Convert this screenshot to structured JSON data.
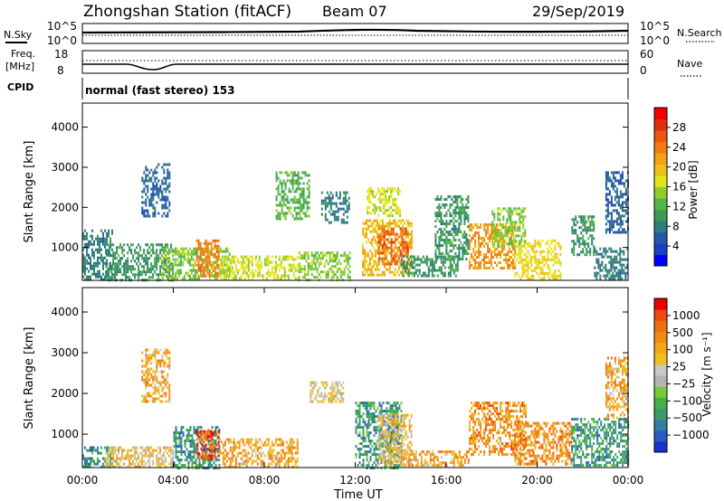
{
  "header": {
    "station": "Zhongshan Station (fitACF)",
    "beam": "Beam 07",
    "date": "29/Sep/2019",
    "cpid_label": "CPID",
    "cpid_text": "normal (fast stereo) 153"
  },
  "chart_data": [
    {
      "id": "nsky-nsearch",
      "type": "line",
      "left_label": "N.Sky",
      "left_ticks": [
        "10^5",
        "10^0"
      ],
      "right_label": "N.Search",
      "right_ticks": [
        "10^5",
        "10^0"
      ]
    },
    {
      "id": "freq-nave",
      "type": "line",
      "left_label_lines": [
        "Freq.",
        "[MHz]"
      ],
      "left_ticks": [
        "18",
        "8"
      ],
      "right_label": "Nave",
      "right_ticks": [
        "60",
        "0"
      ]
    },
    {
      "id": "power",
      "type": "heatmap",
      "ylabel": "Slant Range [km]",
      "yticks": [
        1000,
        2000,
        3000,
        4000
      ],
      "ylim": [
        180,
        4600
      ],
      "xlim_hours": [
        0,
        24
      ],
      "colorbar": {
        "label": "Power [dB]",
        "min": 0,
        "max": 32,
        "tick_labels": [
          "4",
          "8",
          "12",
          "16",
          "20",
          "24",
          "28"
        ],
        "colors": [
          "#0000ff",
          "#1a3fc4",
          "#2458a6",
          "#2e7d7a",
          "#3f9a55",
          "#52b84a",
          "#94cc2e",
          "#e4e41c",
          "#f0c018",
          "#f2a014",
          "#f07c10",
          "#e85810",
          "#e02e10",
          "#f50000"
        ]
      },
      "regions": [
        {
          "t": [
            0.0,
            1.3
          ],
          "r": [
            180,
            1450
          ],
          "v": 8
        },
        {
          "t": [
            1.0,
            4.0
          ],
          "r": [
            200,
            1100
          ],
          "v": 10
        },
        {
          "t": [
            3.5,
            6.5
          ],
          "r": [
            200,
            1000
          ],
          "v": 14
        },
        {
          "t": [
            5.0,
            6.0
          ],
          "r": [
            300,
            1200
          ],
          "v": 24
        },
        {
          "t": [
            6.0,
            9.5
          ],
          "r": [
            200,
            800
          ],
          "v": 16
        },
        {
          "t": [
            9.5,
            11.8
          ],
          "r": [
            200,
            900
          ],
          "v": 14
        },
        {
          "t": [
            10.5,
            11.7
          ],
          "r": [
            1650,
            2400
          ],
          "v": 8
        },
        {
          "t": [
            12.3,
            14.5
          ],
          "r": [
            300,
            1700
          ],
          "v": 20
        },
        {
          "t": [
            13.0,
            14.3
          ],
          "r": [
            600,
            1500
          ],
          "v": 26
        },
        {
          "t": [
            14.0,
            16.5
          ],
          "r": [
            300,
            800
          ],
          "v": 10
        },
        {
          "t": [
            17.0,
            19.0
          ],
          "r": [
            500,
            1600
          ],
          "v": 22
        },
        {
          "t": [
            19.0,
            21.0
          ],
          "r": [
            250,
            1200
          ],
          "v": 18
        },
        {
          "t": [
            21.5,
            22.5
          ],
          "r": [
            800,
            1800
          ],
          "v": 10
        },
        {
          "t": [
            22.5,
            24.0
          ],
          "r": [
            200,
            1000
          ],
          "v": 8
        },
        {
          "t": [
            23.0,
            24.0
          ],
          "r": [
            1400,
            2900
          ],
          "v": 6
        },
        {
          "t": [
            2.6,
            3.8
          ],
          "r": [
            1800,
            3100
          ],
          "v": 6
        },
        {
          "t": [
            8.5,
            10.0
          ],
          "r": [
            1700,
            2900
          ],
          "v": 12
        },
        {
          "t": [
            12.5,
            14.0
          ],
          "r": [
            1800,
            2500
          ],
          "v": 16
        },
        {
          "t": [
            15.5,
            17.0
          ],
          "r": [
            700,
            2300
          ],
          "v": 10
        },
        {
          "t": [
            18.0,
            19.5
          ],
          "r": [
            1000,
            2000
          ],
          "v": 14
        }
      ]
    },
    {
      "id": "velocity",
      "type": "heatmap",
      "ylabel": "Slant Range [km]",
      "yticks": [
        1000,
        2000,
        3000,
        4000
      ],
      "ylim": [
        180,
        4600
      ],
      "xlim_hours": [
        0,
        24
      ],
      "xtick_labels": [
        "00:00",
        "04:00",
        "08:00",
        "12:00",
        "16:00",
        "20:00",
        "00:00"
      ],
      "xlabel": "Time UT",
      "colorbar": {
        "label": "Velocity [m s⁻¹]",
        "tick_labels": [
          "1000",
          "500",
          "100",
          "25",
          "−25",
          "−100",
          "−500",
          "−1000"
        ],
        "colors": [
          "#1c2fd0",
          "#2a5ac0",
          "#2e7fa0",
          "#3a9a6a",
          "#44b04a",
          "#78c83a",
          "#b4b4b4",
          "#c8c8c8",
          "#f0c020",
          "#f0a818",
          "#f08c14",
          "#f07010",
          "#ec4810",
          "#e80000"
        ]
      },
      "regions": [
        {
          "t": [
            0.0,
            1.3
          ],
          "r": [
            180,
            700
          ],
          "v": 3
        },
        {
          "t": [
            1.0,
            4.0
          ],
          "r": [
            200,
            700
          ],
          "v": 8
        },
        {
          "t": [
            4.0,
            6.0
          ],
          "r": [
            200,
            1200
          ],
          "v": 3
        },
        {
          "t": [
            5.0,
            6.0
          ],
          "r": [
            400,
            1100
          ],
          "v": 12
        },
        {
          "t": [
            6.0,
            9.5
          ],
          "r": [
            200,
            900
          ],
          "v": 9
        },
        {
          "t": [
            10.0,
            11.5
          ],
          "r": [
            1800,
            2300
          ],
          "v": 7
        },
        {
          "t": [
            12.0,
            14.0
          ],
          "r": [
            200,
            1800
          ],
          "v": 3
        },
        {
          "t": [
            13.0,
            14.5
          ],
          "r": [
            300,
            1500
          ],
          "v": 8
        },
        {
          "t": [
            14.0,
            17.0
          ],
          "r": [
            250,
            600
          ],
          "v": 9
        },
        {
          "t": [
            17.0,
            19.5
          ],
          "r": [
            500,
            1800
          ],
          "v": 10
        },
        {
          "t": [
            19.0,
            21.5
          ],
          "r": [
            300,
            1300
          ],
          "v": 10
        },
        {
          "t": [
            21.5,
            24.0
          ],
          "r": [
            250,
            1400
          ],
          "v": 3
        },
        {
          "t": [
            23.0,
            24.0
          ],
          "r": [
            1400,
            2900
          ],
          "v": 9
        },
        {
          "t": [
            2.6,
            3.8
          ],
          "r": [
            1800,
            3100
          ],
          "v": 9
        }
      ]
    }
  ]
}
